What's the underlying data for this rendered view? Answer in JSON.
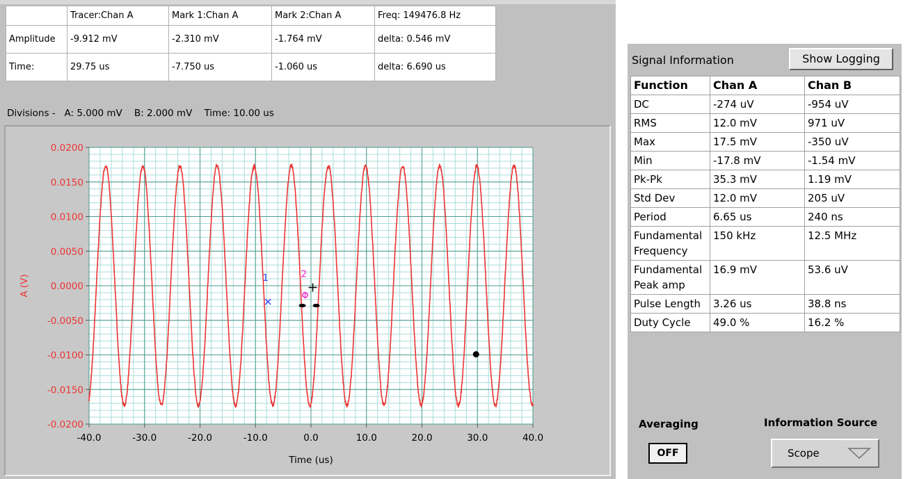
{
  "cursor_table": {
    "headers": [
      "",
      "Tracer:Chan A",
      "Mark 1:Chan A",
      "Mark 2:Chan A",
      "Freq:  149476.8 Hz"
    ],
    "rows": [
      [
        "Amplitude",
        "-9.912 mV",
        "-2.310 mV",
        "-1.764 mV",
        "delta:  0.546 mV"
      ],
      [
        "Time:",
        "29.75 us",
        "-7.750 us",
        "-1.060 us",
        "delta:  6.690 us"
      ]
    ]
  },
  "divisions_text": "Divisions -   A: 5.000 mV    B: 2.000 mV    Time: 10.00 us",
  "graph": {
    "y_label": "A (V)",
    "x_label": "Time (us)",
    "y_ticks": [
      "0.0200",
      "0.0150",
      "0.0100",
      "0.0050",
      "0.0000",
      "-0.0050",
      "-0.0100",
      "-0.0150",
      "-0.0200"
    ],
    "x_ticks": [
      "-40.0",
      "-30.0",
      "-20.0",
      "-10.0",
      "0.0",
      "10.0",
      "20.0",
      "30.0",
      "40.0"
    ],
    "marker1_label": "1",
    "marker2_label": "2",
    "trace_color": "#ee3333",
    "grid_major_color": "#4a9a8a",
    "grid_minor_color": "#a8dcd8"
  },
  "chart_data": {
    "type": "line",
    "series": [
      {
        "name": "Chan A",
        "frequency_hz": 149476.8,
        "amplitude_v": 0.0173
      }
    ],
    "xlabel": "Time (us)",
    "ylabel": "A (V)",
    "xlim": [
      -40,
      40
    ],
    "ylim": [
      -0.02,
      0.02
    ],
    "grid": true,
    "markers": [
      {
        "name": "1",
        "x": -7.75,
        "y": -0.00231
      },
      {
        "name": "2",
        "x": -1.06,
        "y": -0.001764
      }
    ],
    "tracer": {
      "x": 29.75,
      "y": -0.009912
    }
  },
  "info": {
    "title": "Signal Information",
    "show_logging_label": "Show Logging",
    "table_headers": [
      "Function",
      "Chan A",
      "Chan B"
    ],
    "rows": [
      [
        "DC",
        "-274 uV",
        "-954 uV"
      ],
      [
        "RMS",
        "12.0 mV",
        "971 uV"
      ],
      [
        "Max",
        "17.5 mV",
        "-350 uV"
      ],
      [
        "Min",
        "-17.8 mV",
        "-1.54 mV"
      ],
      [
        "Pk-Pk",
        "35.3 mV",
        "1.19 mV"
      ],
      [
        "Std Dev",
        "12.0 mV",
        "205 uV"
      ],
      [
        "Period",
        "6.65 us",
        "240 ns"
      ],
      [
        "Fundamental Frequency",
        "150 kHz",
        "12.5 MHz"
      ],
      [
        "Fundamental Peak amp",
        "16.9 mV",
        "53.6 uV"
      ],
      [
        "Pulse Length",
        "3.26 us",
        "38.8 ns"
      ],
      [
        "Duty Cycle",
        "49.0 %",
        "16.2 %"
      ]
    ],
    "averaging_label": "Averaging",
    "averaging_value": "OFF",
    "source_label": "Information Source",
    "source_value": "Scope"
  }
}
